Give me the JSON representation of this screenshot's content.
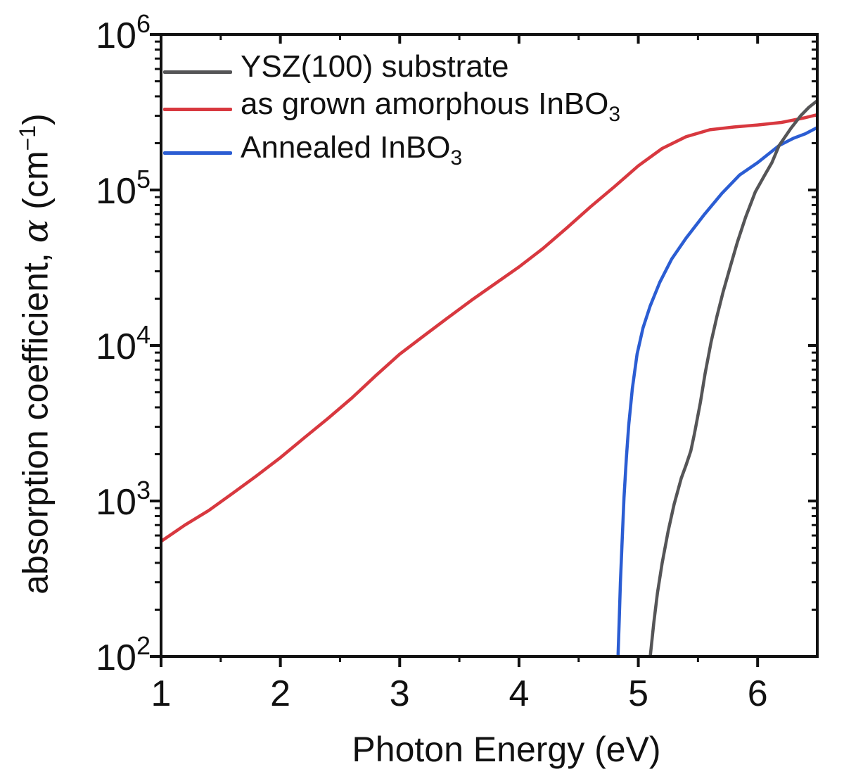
{
  "figure": {
    "background": "#ffffff",
    "axis_color": "#111111"
  },
  "axes": {
    "xlabel": "Photon Energy (eV)",
    "ylabel_pre": "absorption coefficient, ",
    "ylabel_symbol": "α",
    "ylabel_mid": " (cm",
    "ylabel_sup": "−1",
    "ylabel_post": ")"
  },
  "legend": {
    "position": "top-left",
    "items": [
      {
        "label": "YSZ(100) substrate",
        "sub": "",
        "color": "#555557"
      },
      {
        "label": "as grown amorphous InBO",
        "sub": "3",
        "color": "#d8383f"
      },
      {
        "label": "Annealed InBO",
        "sub": "3",
        "color": "#2b5dd3"
      }
    ]
  },
  "chart_data": {
    "type": "line",
    "title": "",
    "xlabel": "Photon Energy (eV)",
    "ylabel": "absorption coefficient, α (cm⁻¹)",
    "x_scale": "linear",
    "y_scale": "log",
    "xlim": [
      1,
      6.5
    ],
    "ylim": [
      100,
      1000000
    ],
    "x_ticks": [
      1,
      2,
      3,
      4,
      5,
      6
    ],
    "x_minor_ticks": [
      1.5,
      2.5,
      3.5,
      4.5,
      5.5
    ],
    "y_tick_exponents": [
      6,
      5,
      4,
      3,
      2
    ],
    "grid": false,
    "legend_position": "top-left",
    "series": [
      {
        "name": "as grown amorphous InBO3",
        "color": "#d8383f",
        "points": [
          [
            1.0,
            550
          ],
          [
            1.2,
            700
          ],
          [
            1.4,
            870
          ],
          [
            1.6,
            1120
          ],
          [
            1.8,
            1450
          ],
          [
            2.0,
            1900
          ],
          [
            2.2,
            2550
          ],
          [
            2.4,
            3400
          ],
          [
            2.6,
            4600
          ],
          [
            2.8,
            6400
          ],
          [
            3.0,
            8800
          ],
          [
            3.2,
            11500
          ],
          [
            3.4,
            15000
          ],
          [
            3.6,
            19500
          ],
          [
            3.8,
            25000
          ],
          [
            4.0,
            32000
          ],
          [
            4.2,
            42000
          ],
          [
            4.4,
            57000
          ],
          [
            4.6,
            78000
          ],
          [
            4.8,
            105000
          ],
          [
            5.0,
            143000
          ],
          [
            5.2,
            185000
          ],
          [
            5.4,
            220000
          ],
          [
            5.6,
            244000
          ],
          [
            5.8,
            254000
          ],
          [
            6.0,
            262000
          ],
          [
            6.2,
            272000
          ],
          [
            6.4,
            292000
          ],
          [
            6.5,
            305000
          ]
        ]
      },
      {
        "name": "Annealed InBO3",
        "color": "#2b5dd3",
        "points": [
          [
            4.83,
            100
          ],
          [
            4.84,
            170
          ],
          [
            4.85,
            300
          ],
          [
            4.865,
            560
          ],
          [
            4.88,
            1050
          ],
          [
            4.9,
            1900
          ],
          [
            4.92,
            3100
          ],
          [
            4.95,
            5300
          ],
          [
            4.99,
            8800
          ],
          [
            5.04,
            13000
          ],
          [
            5.1,
            18000
          ],
          [
            5.18,
            25500
          ],
          [
            5.28,
            36000
          ],
          [
            5.4,
            49000
          ],
          [
            5.55,
            69000
          ],
          [
            5.7,
            95000
          ],
          [
            5.85,
            125000
          ],
          [
            6.0,
            150000
          ],
          [
            6.18,
            193000
          ],
          [
            6.3,
            215000
          ],
          [
            6.4,
            230000
          ],
          [
            6.5,
            252000
          ]
        ]
      },
      {
        "name": "YSZ(100) substrate",
        "color": "#555557",
        "points": [
          [
            5.1,
            100
          ],
          [
            5.13,
            165
          ],
          [
            5.16,
            255
          ],
          [
            5.2,
            400
          ],
          [
            5.25,
            640
          ],
          [
            5.3,
            950
          ],
          [
            5.36,
            1400
          ],
          [
            5.4,
            1700
          ],
          [
            5.44,
            2100
          ],
          [
            5.47,
            2700
          ],
          [
            5.52,
            4300
          ],
          [
            5.56,
            6600
          ],
          [
            5.61,
            10500
          ],
          [
            5.66,
            15500
          ],
          [
            5.71,
            22000
          ],
          [
            5.77,
            32000
          ],
          [
            5.83,
            46000
          ],
          [
            5.9,
            67000
          ],
          [
            5.98,
            97000
          ],
          [
            6.06,
            125000
          ],
          [
            6.12,
            150000
          ],
          [
            6.18,
            193000
          ],
          [
            6.28,
            250000
          ],
          [
            6.36,
            300000
          ],
          [
            6.43,
            340000
          ],
          [
            6.5,
            375000
          ]
        ]
      }
    ]
  }
}
